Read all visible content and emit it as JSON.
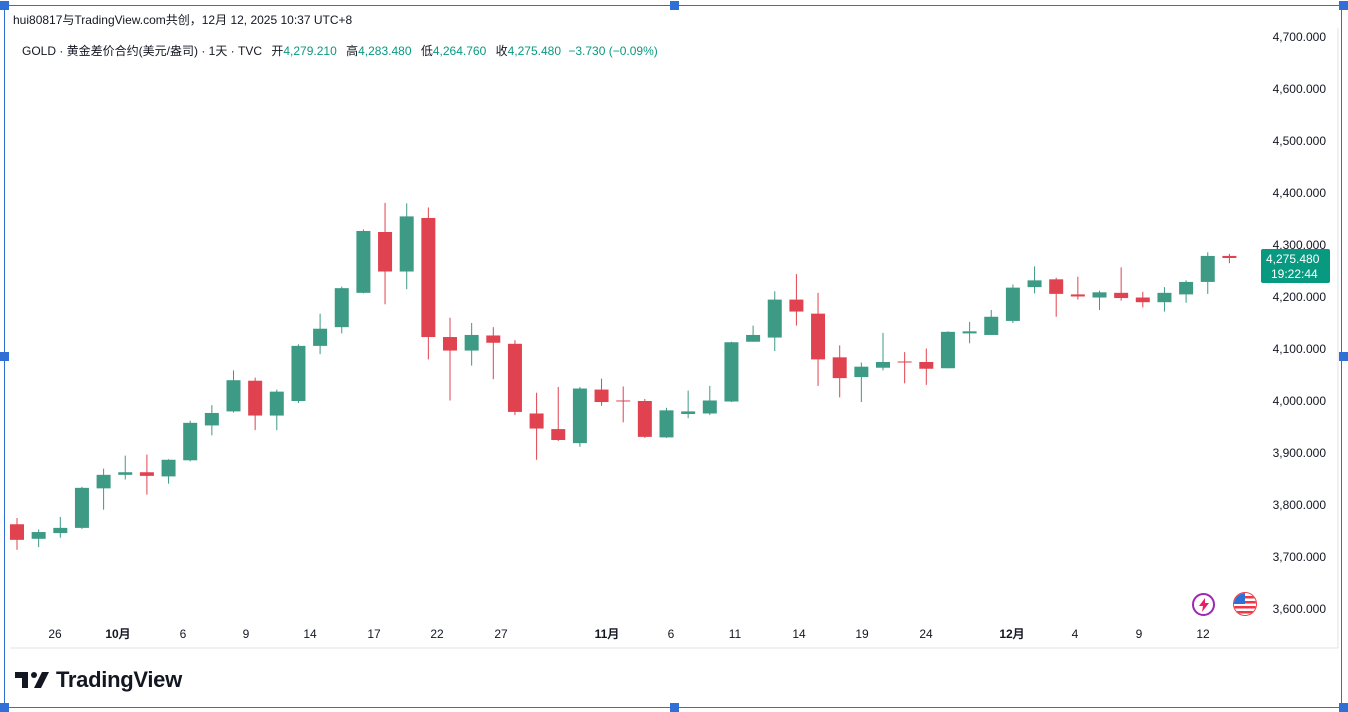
{
  "header": {
    "caption": "hui80817与TradingView.com共创，12月 12, 2025 10:37 UTC+8"
  },
  "legend": {
    "symbol": "GOLD · 黄金差价合约(美元/盎司) · 1天 · TVC",
    "open_label": "开",
    "open": "4,279.210",
    "high_label": "高",
    "high": "4,283.480",
    "low_label": "低",
    "low": "4,264.760",
    "close_label": "收",
    "close": "4,275.480",
    "change": "−3.730 (−0.09%)"
  },
  "price_badge": {
    "price": "4,275.480",
    "countdown": "19:22:44"
  },
  "brand": {
    "name": "TradingView"
  },
  "icons": {
    "lightning": "lightning-icon",
    "flag": "us-flag-icon"
  },
  "colors": {
    "up": "#089981",
    "down": "#f23645",
    "up_bar": "#3d9a85",
    "down_bar": "#e0434f"
  },
  "chart_data": {
    "type": "candlestick",
    "ylim": [
      3600,
      4700
    ],
    "ytick_labels": [
      "4,700.000",
      "4,600.000",
      "4,500.000",
      "4,400.000",
      "4,300.000",
      "4,200.000",
      "4,100.000",
      "4,000.000",
      "3,900.000",
      "3,800.000",
      "3,700.000",
      "3,600.000"
    ],
    "xtick_labels": [
      "26",
      "10月",
      "6",
      "9",
      "14",
      "17",
      "22",
      "27",
      "11月",
      "6",
      "11",
      "14",
      "19",
      "24",
      "12月",
      "4",
      "9",
      "12"
    ],
    "ohlc": [
      {
        "o": 3763,
        "h": 3775,
        "l": 3714,
        "c": 3733
      },
      {
        "o": 3735,
        "h": 3753,
        "l": 3719,
        "c": 3748
      },
      {
        "o": 3746,
        "h": 3777,
        "l": 3737,
        "c": 3756
      },
      {
        "o": 3756,
        "h": 3835,
        "l": 3754,
        "c": 3833
      },
      {
        "o": 3832,
        "h": 3870,
        "l": 3791,
        "c": 3858
      },
      {
        "o": 3858,
        "h": 3895,
        "l": 3849,
        "c": 3863
      },
      {
        "o": 3863,
        "h": 3897,
        "l": 3820,
        "c": 3856
      },
      {
        "o": 3855,
        "h": 3888,
        "l": 3841,
        "c": 3887
      },
      {
        "o": 3886,
        "h": 3962,
        "l": 3884,
        "c": 3958
      },
      {
        "o": 3953,
        "h": 3992,
        "l": 3934,
        "c": 3977
      },
      {
        "o": 3980,
        "h": 4059,
        "l": 3978,
        "c": 4040
      },
      {
        "o": 4039,
        "h": 4045,
        "l": 3944,
        "c": 3972
      },
      {
        "o": 3972,
        "h": 4022,
        "l": 3944,
        "c": 4018
      },
      {
        "o": 4000,
        "h": 4109,
        "l": 3996,
        "c": 4106
      },
      {
        "o": 4106,
        "h": 4168,
        "l": 4090,
        "c": 4139
      },
      {
        "o": 4142,
        "h": 4220,
        "l": 4130,
        "c": 4217
      },
      {
        "o": 4208,
        "h": 4330,
        "l": 4207,
        "c": 4327
      },
      {
        "o": 4325,
        "h": 4381,
        "l": 4186,
        "c": 4249
      },
      {
        "o": 4249,
        "h": 4380,
        "l": 4215,
        "c": 4355
      },
      {
        "o": 4352,
        "h": 4372,
        "l": 4080,
        "c": 4123
      },
      {
        "o": 4123,
        "h": 4160,
        "l": 4001,
        "c": 4097
      },
      {
        "o": 4097,
        "h": 4150,
        "l": 4068,
        "c": 4127
      },
      {
        "o": 4126,
        "h": 4142,
        "l": 4042,
        "c": 4112
      },
      {
        "o": 4110,
        "h": 4117,
        "l": 3973,
        "c": 3979
      },
      {
        "o": 3976,
        "h": 4016,
        "l": 3887,
        "c": 3947
      },
      {
        "o": 3946,
        "h": 4027,
        "l": 3923,
        "c": 3925
      },
      {
        "o": 3919,
        "h": 4027,
        "l": 3912,
        "c": 4024
      },
      {
        "o": 4022,
        "h": 4043,
        "l": 3991,
        "c": 3998
      },
      {
        "o": 4001,
        "h": 4028,
        "l": 3959,
        "c": 4000
      },
      {
        "o": 4000,
        "h": 4004,
        "l": 3929,
        "c": 3931
      },
      {
        "o": 3930,
        "h": 3987,
        "l": 3929,
        "c": 3982
      },
      {
        "o": 3975,
        "h": 4020,
        "l": 3967,
        "c": 3980
      },
      {
        "o": 3976,
        "h": 4029,
        "l": 3973,
        "c": 4001
      },
      {
        "o": 3999,
        "h": 4114,
        "l": 3998,
        "c": 4113
      },
      {
        "o": 4114,
        "h": 4145,
        "l": 4114,
        "c": 4127
      },
      {
        "o": 4122,
        "h": 4211,
        "l": 4096,
        "c": 4195
      },
      {
        "o": 4195,
        "h": 4244,
        "l": 4145,
        "c": 4172
      },
      {
        "o": 4168,
        "h": 4208,
        "l": 4029,
        "c": 4080
      },
      {
        "o": 4084,
        "h": 4107,
        "l": 4007,
        "c": 4044
      },
      {
        "o": 4046,
        "h": 4074,
        "l": 3998,
        "c": 4066
      },
      {
        "o": 4064,
        "h": 4131,
        "l": 4059,
        "c": 4075
      },
      {
        "o": 4076,
        "h": 4094,
        "l": 4034,
        "c": 4074
      },
      {
        "o": 4075,
        "h": 4101,
        "l": 4031,
        "c": 4062
      },
      {
        "o": 4063,
        "h": 4134,
        "l": 4063,
        "c": 4133
      },
      {
        "o": 4130,
        "h": 4152,
        "l": 4111,
        "c": 4134
      },
      {
        "o": 4127,
        "h": 4175,
        "l": 4128,
        "c": 4162
      },
      {
        "o": 4154,
        "h": 4224,
        "l": 4150,
        "c": 4218
      },
      {
        "o": 4219,
        "h": 4259,
        "l": 4207,
        "c": 4232
      },
      {
        "o": 4234,
        "h": 4237,
        "l": 4162,
        "c": 4206
      },
      {
        "o": 4205,
        "h": 4239,
        "l": 4195,
        "c": 4201
      },
      {
        "o": 4199,
        "h": 4212,
        "l": 4175,
        "c": 4209
      },
      {
        "o": 4208,
        "h": 4257,
        "l": 4193,
        "c": 4198
      },
      {
        "o": 4199,
        "h": 4210,
        "l": 4180,
        "c": 4190
      },
      {
        "o": 4190,
        "h": 4219,
        "l": 4172,
        "c": 4208
      },
      {
        "o": 4205,
        "h": 4232,
        "l": 4189,
        "c": 4229
      },
      {
        "o": 4229,
        "h": 4286,
        "l": 4206,
        "c": 4279
      },
      {
        "o": 4279,
        "h": 4283,
        "l": 4265,
        "c": 4275
      }
    ]
  }
}
